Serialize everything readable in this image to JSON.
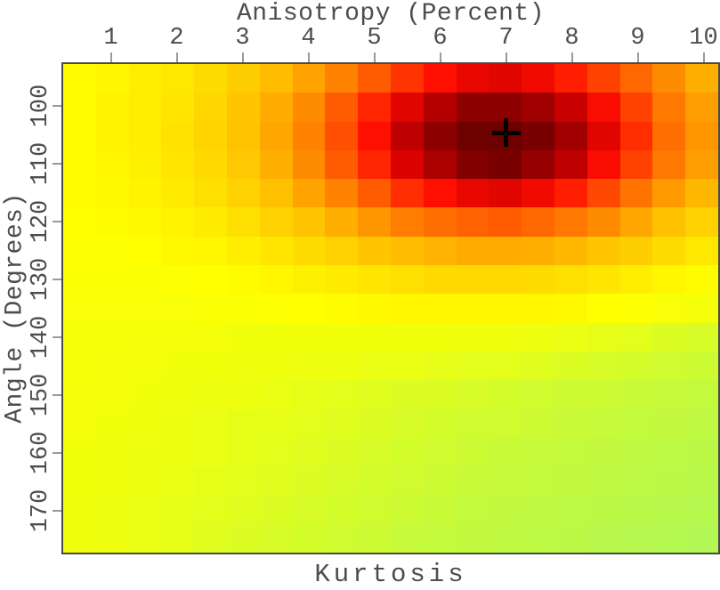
{
  "figure": {
    "top_axis_title": "Anisotropy (Percent)",
    "left_axis_title": "Angle (Degrees)",
    "bottom_title": "Kurtosis"
  },
  "style": {
    "background": "#ffffff",
    "axis_text_color": "#4d4d4d",
    "tick_mark_color": "#9a9a9a",
    "plot_border_color": "#4a4a4a",
    "marker_color": "#000000"
  },
  "chart_data": {
    "type": "heatmap",
    "title": "Anisotropy (Percent)",
    "xlabel": "Anisotropy (Percent)",
    "ylabel": "Angle (Degrees)",
    "value_label": "Kurtosis",
    "legend": "none",
    "grid": false,
    "x_axis": {
      "position": "top",
      "ticks": [
        1,
        2,
        3,
        4,
        5,
        6,
        7,
        8,
        9,
        10
      ],
      "range": [
        0.25,
        10.25
      ]
    },
    "y_axis": {
      "position": "left",
      "ticks": [
        100,
        110,
        120,
        130,
        140,
        150,
        160,
        170
      ],
      "range": [
        92.5,
        177.5
      ],
      "direction": "increasing-downward"
    },
    "x_values": [
      0.5,
      1.0,
      1.5,
      2.0,
      2.5,
      3.0,
      3.5,
      4.0,
      4.5,
      5.0,
      5.5,
      6.0,
      6.5,
      7.0,
      7.5,
      8.0,
      8.5,
      9.0,
      9.5,
      10.0
    ],
    "y_values": [
      95,
      100,
      105,
      110,
      115,
      120,
      125,
      130,
      135,
      140,
      145,
      150,
      155,
      160,
      165,
      170,
      175
    ],
    "values_normalized": [
      [
        0.31,
        0.33,
        0.36,
        0.38,
        0.42,
        0.47,
        0.53,
        0.59,
        0.66,
        0.73,
        0.79,
        0.84,
        0.87,
        0.88,
        0.86,
        0.82,
        0.77,
        0.71,
        0.64,
        0.56
      ],
      [
        0.31,
        0.34,
        0.36,
        0.39,
        0.44,
        0.5,
        0.57,
        0.64,
        0.73,
        0.81,
        0.88,
        0.93,
        0.97,
        0.97,
        0.95,
        0.91,
        0.85,
        0.77,
        0.68,
        0.6
      ],
      [
        0.31,
        0.34,
        0.36,
        0.4,
        0.45,
        0.51,
        0.58,
        0.66,
        0.75,
        0.84,
        0.92,
        0.97,
        1.0,
        1.0,
        0.99,
        0.95,
        0.88,
        0.8,
        0.7,
        0.62
      ],
      [
        0.31,
        0.33,
        0.35,
        0.39,
        0.43,
        0.49,
        0.56,
        0.64,
        0.73,
        0.81,
        0.89,
        0.94,
        0.98,
        0.99,
        0.96,
        0.92,
        0.85,
        0.77,
        0.68,
        0.6
      ],
      [
        0.31,
        0.32,
        0.34,
        0.37,
        0.41,
        0.46,
        0.52,
        0.59,
        0.66,
        0.73,
        0.8,
        0.84,
        0.87,
        0.88,
        0.86,
        0.82,
        0.76,
        0.69,
        0.61,
        0.54
      ],
      [
        0.3,
        0.31,
        0.32,
        0.34,
        0.37,
        0.41,
        0.46,
        0.51,
        0.56,
        0.62,
        0.67,
        0.7,
        0.72,
        0.73,
        0.71,
        0.68,
        0.64,
        0.58,
        0.52,
        0.46
      ],
      [
        0.29,
        0.29,
        0.3,
        0.32,
        0.33,
        0.36,
        0.39,
        0.42,
        0.46,
        0.5,
        0.53,
        0.55,
        0.57,
        0.57,
        0.56,
        0.54,
        0.5,
        0.47,
        0.42,
        0.38
      ],
      [
        0.28,
        0.28,
        0.28,
        0.29,
        0.3,
        0.31,
        0.33,
        0.35,
        0.37,
        0.39,
        0.41,
        0.43,
        0.43,
        0.43,
        0.42,
        0.41,
        0.39,
        0.36,
        0.33,
        0.31
      ],
      [
        0.27,
        0.27,
        0.27,
        0.27,
        0.28,
        0.28,
        0.29,
        0.3,
        0.31,
        0.32,
        0.33,
        0.33,
        0.33,
        0.33,
        0.33,
        0.32,
        0.3,
        0.29,
        0.27,
        0.25
      ],
      [
        0.26,
        0.26,
        0.25,
        0.25,
        0.25,
        0.24,
        0.24,
        0.24,
        0.24,
        0.24,
        0.24,
        0.24,
        0.23,
        0.23,
        0.22,
        0.21,
        0.2,
        0.19,
        0.17,
        0.16
      ],
      [
        0.26,
        0.25,
        0.25,
        0.24,
        0.24,
        0.23,
        0.23,
        0.22,
        0.22,
        0.21,
        0.21,
        0.2,
        0.19,
        0.19,
        0.18,
        0.17,
        0.16,
        0.15,
        0.14,
        0.13
      ],
      [
        0.25,
        0.25,
        0.24,
        0.23,
        0.22,
        0.22,
        0.21,
        0.2,
        0.19,
        0.18,
        0.17,
        0.17,
        0.16,
        0.15,
        0.14,
        0.13,
        0.13,
        0.12,
        0.11,
        0.1
      ],
      [
        0.25,
        0.24,
        0.23,
        0.22,
        0.21,
        0.2,
        0.2,
        0.19,
        0.18,
        0.17,
        0.16,
        0.15,
        0.14,
        0.14,
        0.13,
        0.12,
        0.11,
        0.1,
        0.09,
        0.08
      ],
      [
        0.24,
        0.23,
        0.22,
        0.22,
        0.21,
        0.2,
        0.19,
        0.18,
        0.17,
        0.16,
        0.15,
        0.14,
        0.13,
        0.12,
        0.11,
        0.1,
        0.09,
        0.08,
        0.07,
        0.06
      ],
      [
        0.24,
        0.23,
        0.22,
        0.21,
        0.2,
        0.19,
        0.18,
        0.17,
        0.16,
        0.15,
        0.14,
        0.13,
        0.12,
        0.11,
        0.1,
        0.09,
        0.08,
        0.07,
        0.06,
        0.05
      ],
      [
        0.23,
        0.22,
        0.21,
        0.2,
        0.19,
        0.18,
        0.17,
        0.16,
        0.15,
        0.14,
        0.13,
        0.12,
        0.1,
        0.09,
        0.08,
        0.07,
        0.06,
        0.05,
        0.04,
        0.03
      ],
      [
        0.23,
        0.22,
        0.21,
        0.2,
        0.18,
        0.17,
        0.16,
        0.15,
        0.14,
        0.13,
        0.11,
        0.1,
        0.09,
        0.08,
        0.07,
        0.06,
        0.04,
        0.03,
        0.02,
        0.01
      ]
    ],
    "colormap": [
      [
        0.0,
        "#b0f755"
      ],
      [
        0.12,
        "#c8fa37"
      ],
      [
        0.22,
        "#eeff0f"
      ],
      [
        0.3,
        "#ffff00"
      ],
      [
        0.42,
        "#ffdc00"
      ],
      [
        0.52,
        "#ffc000"
      ],
      [
        0.62,
        "#ff9600"
      ],
      [
        0.7,
        "#ff6e00"
      ],
      [
        0.78,
        "#ff3c00"
      ],
      [
        0.84,
        "#ff0f00"
      ],
      [
        0.9,
        "#d20000"
      ],
      [
        0.95,
        "#a00000"
      ],
      [
        1.0,
        "#6e0000"
      ]
    ],
    "marker": {
      "x": 7.0,
      "y": 104.7,
      "symbol": "+",
      "color": "#000000"
    }
  }
}
